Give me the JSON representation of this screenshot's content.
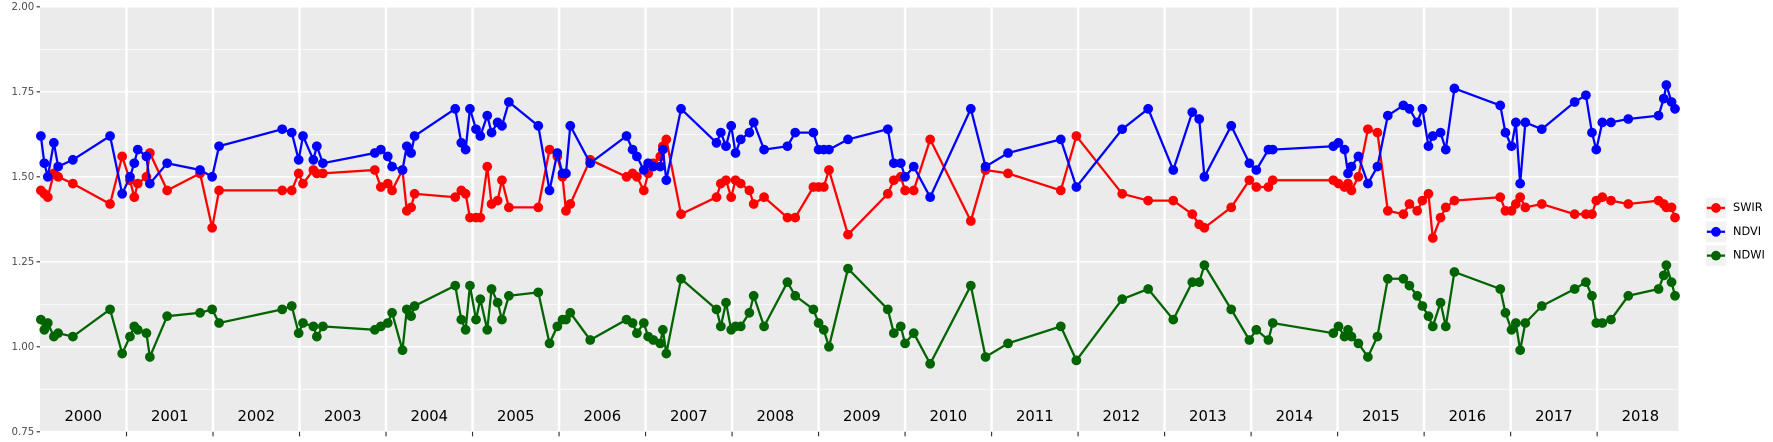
{
  "chart_data": {
    "type": "line",
    "x": [
      2000.01,
      2000.05,
      2000.09,
      2000.16,
      2000.21,
      2000.38,
      2000.81,
      2000.95,
      2001.04,
      2001.09,
      2001.13,
      2001.23,
      2001.27,
      2001.47,
      2001.85,
      2001.99,
      2002.07,
      2002.8,
      2002.91,
      2002.99,
      2003.04,
      2003.16,
      2003.2,
      2003.27,
      2003.87,
      2003.94,
      2004.02,
      2004.07,
      2004.19,
      2004.24,
      2004.29,
      2004.33,
      2004.8,
      2004.87,
      2004.92,
      2004.97,
      2005.04,
      2005.09,
      2005.17,
      2005.22,
      2005.29,
      2005.34,
      2005.42,
      2005.76,
      2005.89,
      2005.98,
      2006.04,
      2006.08,
      2006.13,
      2006.36,
      2006.78,
      2006.85,
      2006.9,
      2006.98,
      2007.03,
      2007.09,
      2007.17,
      2007.2,
      2007.24,
      2007.41,
      2007.82,
      2007.87,
      2007.93,
      2007.99,
      2008.04,
      2008.1,
      2008.2,
      2008.25,
      2008.37,
      2008.64,
      2008.73,
      2008.94,
      2009.0,
      2009.06,
      2009.12,
      2009.34,
      2009.8,
      2009.87,
      2009.95,
      2010.0,
      2010.1,
      2010.29,
      2010.76,
      2010.93,
      2011.19,
      2011.8,
      2011.98,
      2012.51,
      2012.81,
      2013.1,
      2013.32,
      2013.4,
      2013.46,
      2013.77,
      2013.98,
      2014.06,
      2014.2,
      2014.25,
      2014.95,
      2015.01,
      2015.08,
      2015.12,
      2015.16,
      2015.24,
      2015.35,
      2015.46,
      2015.58,
      2015.76,
      2015.83,
      2015.92,
      2015.98,
      2016.05,
      2016.1,
      2016.19,
      2016.25,
      2016.35,
      2016.88,
      2016.94,
      2017.01,
      2017.06,
      2017.11,
      2017.17,
      2017.36,
      2017.74,
      2017.87,
      2017.94,
      2017.99,
      2018.06,
      2018.16,
      2018.36,
      2018.71,
      2018.77,
      2018.8,
      2018.86,
      2018.9
    ],
    "series": [
      {
        "name": "SWIR",
        "color": "#ff0000",
        "values": [
          1.46,
          1.45,
          1.44,
          1.51,
          1.5,
          1.48,
          1.42,
          1.56,
          1.49,
          1.44,
          1.48,
          1.5,
          1.57,
          1.46,
          1.51,
          1.35,
          1.46,
          1.46,
          1.46,
          1.51,
          1.48,
          1.52,
          1.51,
          1.51,
          1.52,
          1.47,
          1.48,
          1.46,
          1.52,
          1.4,
          1.41,
          1.45,
          1.44,
          1.46,
          1.45,
          1.38,
          1.38,
          1.38,
          1.53,
          1.42,
          1.43,
          1.49,
          1.41,
          1.41,
          1.58,
          1.56,
          1.5,
          1.4,
          1.42,
          1.55,
          1.5,
          1.51,
          1.5,
          1.46,
          1.51,
          1.54,
          1.56,
          1.59,
          1.61,
          1.39,
          1.44,
          1.48,
          1.49,
          1.44,
          1.49,
          1.48,
          1.46,
          1.42,
          1.44,
          1.38,
          1.38,
          1.47,
          1.47,
          1.47,
          1.52,
          1.33,
          1.45,
          1.49,
          1.5,
          1.46,
          1.46,
          1.61,
          1.37,
          1.52,
          1.51,
          1.46,
          1.62,
          1.45,
          1.43,
          1.43,
          1.39,
          1.36,
          1.35,
          1.41,
          1.49,
          1.47,
          1.47,
          1.49,
          1.49,
          1.48,
          1.47,
          1.48,
          1.46,
          1.5,
          1.64,
          1.63,
          1.4,
          1.39,
          1.42,
          1.4,
          1.43,
          1.45,
          1.32,
          1.38,
          1.41,
          1.43,
          1.44,
          1.4,
          1.4,
          1.42,
          1.44,
          1.41,
          1.42,
          1.39,
          1.39,
          1.39,
          1.43,
          1.44,
          1.43,
          1.42,
          1.43,
          1.42,
          1.41,
          1.41,
          1.38
        ]
      },
      {
        "name": "NDVI",
        "color": "#0000ff",
        "values": [
          1.62,
          1.54,
          1.5,
          1.6,
          1.53,
          1.55,
          1.62,
          1.45,
          1.5,
          1.54,
          1.58,
          1.56,
          1.48,
          1.54,
          1.52,
          1.5,
          1.59,
          1.64,
          1.63,
          1.55,
          1.62,
          1.55,
          1.59,
          1.54,
          1.57,
          1.58,
          1.56,
          1.53,
          1.52,
          1.59,
          1.57,
          1.62,
          1.7,
          1.6,
          1.58,
          1.7,
          1.64,
          1.62,
          1.68,
          1.63,
          1.66,
          1.65,
          1.72,
          1.65,
          1.46,
          1.57,
          1.51,
          1.51,
          1.65,
          1.54,
          1.62,
          1.58,
          1.56,
          1.52,
          1.54,
          1.53,
          1.53,
          1.58,
          1.49,
          1.7,
          1.6,
          1.63,
          1.59,
          1.65,
          1.57,
          1.61,
          1.63,
          1.66,
          1.58,
          1.59,
          1.63,
          1.63,
          1.58,
          1.58,
          1.58,
          1.61,
          1.64,
          1.54,
          1.54,
          1.5,
          1.53,
          1.44,
          1.7,
          1.53,
          1.57,
          1.61,
          1.47,
          1.64,
          1.7,
          1.52,
          1.69,
          1.67,
          1.5,
          1.65,
          1.54,
          1.52,
          1.58,
          1.58,
          1.59,
          1.6,
          1.58,
          1.51,
          1.53,
          1.56,
          1.48,
          1.53,
          1.68,
          1.71,
          1.7,
          1.66,
          1.7,
          1.59,
          1.62,
          1.63,
          1.58,
          1.76,
          1.71,
          1.63,
          1.59,
          1.66,
          1.48,
          1.66,
          1.64,
          1.72,
          1.74,
          1.63,
          1.58,
          1.66,
          1.66,
          1.67,
          1.68,
          1.73,
          1.77,
          1.72,
          1.7
        ]
      },
      {
        "name": "NDWI",
        "color": "#006400",
        "values": [
          1.08,
          1.05,
          1.07,
          1.03,
          1.04,
          1.03,
          1.11,
          0.98,
          1.03,
          1.06,
          1.05,
          1.04,
          0.97,
          1.09,
          1.1,
          1.11,
          1.07,
          1.11,
          1.12,
          1.04,
          1.07,
          1.06,
          1.03,
          1.06,
          1.05,
          1.06,
          1.07,
          1.1,
          0.99,
          1.11,
          1.09,
          1.12,
          1.18,
          1.08,
          1.05,
          1.18,
          1.08,
          1.14,
          1.05,
          1.17,
          1.13,
          1.08,
          1.15,
          1.16,
          1.01,
          1.06,
          1.08,
          1.08,
          1.1,
          1.02,
          1.08,
          1.07,
          1.04,
          1.07,
          1.03,
          1.02,
          1.01,
          1.05,
          0.98,
          1.2,
          1.11,
          1.06,
          1.13,
          1.05,
          1.06,
          1.06,
          1.1,
          1.15,
          1.06,
          1.19,
          1.15,
          1.11,
          1.07,
          1.05,
          1.0,
          1.23,
          1.11,
          1.04,
          1.06,
          1.01,
          1.04,
          0.95,
          1.18,
          0.97,
          1.01,
          1.06,
          0.96,
          1.14,
          1.17,
          1.08,
          1.19,
          1.19,
          1.24,
          1.11,
          1.02,
          1.05,
          1.02,
          1.07,
          1.04,
          1.06,
          1.03,
          1.05,
          1.03,
          1.01,
          0.97,
          1.03,
          1.2,
          1.2,
          1.18,
          1.15,
          1.12,
          1.09,
          1.06,
          1.13,
          1.06,
          1.22,
          1.17,
          1.1,
          1.05,
          1.07,
          0.99,
          1.07,
          1.12,
          1.17,
          1.19,
          1.15,
          1.07,
          1.07,
          1.08,
          1.15,
          1.17,
          1.21,
          1.24,
          1.19,
          1.15
        ]
      }
    ],
    "xlim": [
      2000,
      2018.94
    ],
    "xticks": [
      2001,
      2002,
      2003,
      2004,
      2005,
      2006,
      2007,
      2008,
      2009,
      2010,
      2011,
      2012,
      2013,
      2014,
      2015,
      2016,
      2017,
      2018
    ],
    "ylim": [
      0.75,
      2.0
    ],
    "yticks": [
      0.75,
      {
        "value": 1.0,
        "label": "1.00"
      },
      1.25,
      {
        "value": 1.5,
        "label": "1.50"
      },
      1.75,
      {
        "value": 2.0,
        "label": "2.00"
      }
    ],
    "year_labels": [
      "2000",
      "2001",
      "2002",
      "2003",
      "2004",
      "2005",
      "2006",
      "2007",
      "2008",
      "2009",
      "2010",
      "2011",
      "2012",
      "2013",
      "2014",
      "2015",
      "2016",
      "2017",
      "2018"
    ],
    "grid": true,
    "legend": "right"
  }
}
